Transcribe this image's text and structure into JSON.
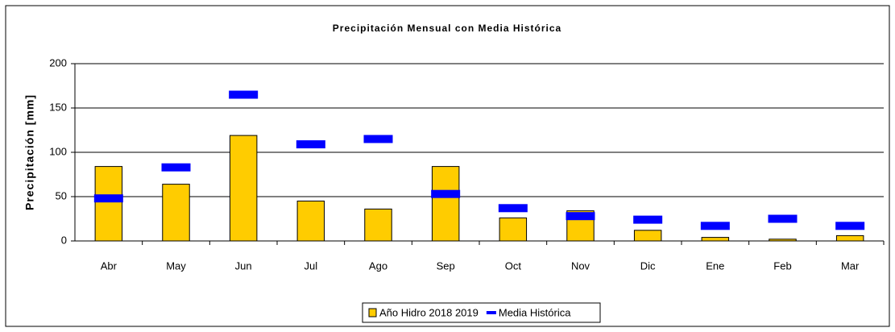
{
  "chart_data": {
    "type": "bar",
    "title": "Precipitación Mensual con Media Histórica",
    "y_label": "Precipitación [mm]",
    "categories": [
      "Abr",
      "May",
      "Jun",
      "Jul",
      "Ago",
      "Sep",
      "Oct",
      "Nov",
      "Dic",
      "Ene",
      "Feb",
      "Mar"
    ],
    "series": [
      {
        "name": "Año Hidro 2018 2019",
        "type": "bar",
        "color": "#ffcc00",
        "values": [
          84,
          64,
          119,
          45,
          36,
          84,
          26,
          34,
          12,
          4,
          2,
          6
        ]
      },
      {
        "name": "Media Histórica",
        "type": "dash",
        "color": "#0000ff",
        "values": [
          48,
          83,
          165,
          109,
          115,
          53,
          37,
          28,
          24,
          17,
          25,
          17
        ]
      }
    ],
    "ylim": [
      0,
      200
    ],
    "yticks": [
      0,
      50,
      100,
      150,
      200
    ],
    "grid": true,
    "legend": "bottom"
  }
}
